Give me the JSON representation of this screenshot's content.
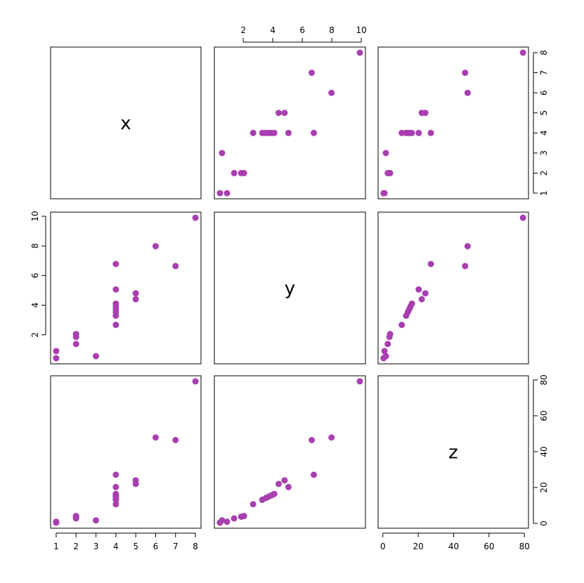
{
  "chart_data": {
    "type": "scatter-matrix",
    "color": "#a83fb0",
    "variables": [
      {
        "name": "x",
        "values": [
          1,
          1,
          2,
          2,
          2,
          3,
          4,
          4,
          4,
          4,
          4,
          4,
          4,
          4,
          5,
          5,
          6,
          7,
          8
        ],
        "lim": [
          0.72,
          8.28
        ],
        "ticks": [
          1,
          2,
          3,
          4,
          5,
          6,
          7,
          8
        ]
      },
      {
        "name": "y",
        "values": [
          0.42,
          0.9,
          1.38,
          1.86,
          2.05,
          0.56,
          2.67,
          3.29,
          3.53,
          3.72,
          3.91,
          4.1,
          5.06,
          6.78,
          4.4,
          4.8,
          7.98,
          6.64,
          9.9
        ],
        "lim": [
          0.04,
          10.28
        ],
        "ticks": [
          2,
          4,
          6,
          8,
          10
        ]
      },
      {
        "name": "z",
        "values": [
          0.42,
          0.9,
          2.76,
          3.72,
          4.1,
          1.68,
          10.68,
          13.16,
          14.12,
          14.88,
          15.64,
          16.4,
          20.24,
          27.12,
          22,
          24,
          47.88,
          46.48,
          79.2
        ],
        "lim": [
          -2.7,
          82.3
        ],
        "ticks": [
          0,
          20,
          40,
          60,
          80
        ]
      }
    ]
  }
}
